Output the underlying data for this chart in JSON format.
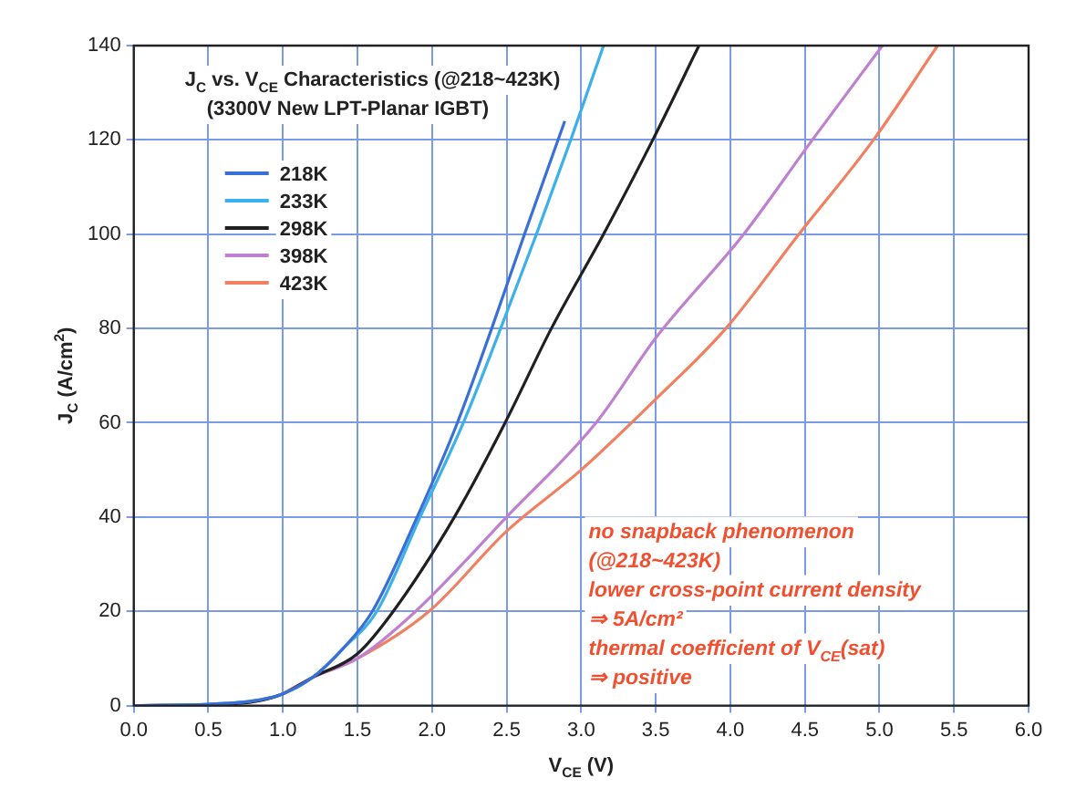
{
  "chart_data": {
    "type": "line",
    "title": "J$_{C}$ vs. V$_{CE}$ Characteristics (@218~423K)",
    "subtitle": "(3300V New LPT-Planar IGBT)",
    "xlabel": "V$_{CE}$ (V)",
    "ylabel": "J$_{C}$ (A/cm$^{2}$)",
    "xlim": [
      0,
      6
    ],
    "ylim": [
      0,
      140
    ],
    "xticks": [
      {
        "value": 0,
        "label": "0.0"
      },
      0.5,
      {
        "value": 1,
        "label": "1.0"
      },
      1.5,
      {
        "value": 2,
        "label": "2.0"
      },
      2.5,
      {
        "value": 3,
        "label": "3.0"
      },
      3.5,
      {
        "value": 4,
        "label": "4.0"
      },
      4.5,
      {
        "value": 5,
        "label": "5.0"
      },
      5.5,
      {
        "value": 6,
        "label": "6.0"
      }
    ],
    "yticks": [
      0,
      20,
      40,
      60,
      80,
      100,
      120,
      140
    ],
    "grid": true,
    "legend": "top left",
    "marker": "none",
    "line_style": "solid",
    "series": [
      {
        "name": "218K",
        "color": "#3a6fd8",
        "x": [
          0,
          0.5,
          0.8,
          1.0,
          1.2,
          1.4,
          1.6,
          1.9,
          2.17,
          2.4,
          2.62,
          2.89
        ],
        "values": [
          0,
          0.3,
          1,
          2.5,
          6,
          12,
          20,
          40,
          60,
          80,
          100,
          124
        ]
      },
      {
        "name": "233K",
        "color": "#3cb0e8",
        "x": [
          0,
          0.5,
          0.8,
          1.0,
          1.2,
          1.4,
          1.63,
          1.92,
          2.21,
          2.46,
          2.7,
          2.93,
          3.15
        ],
        "values": [
          0,
          0.3,
          1,
          2.5,
          6,
          12,
          20,
          40,
          60,
          80,
          100,
          120,
          140
        ]
      },
      {
        "name": "298K",
        "color": "#202020",
        "x": [
          0,
          0.5,
          0.8,
          1.0,
          1.2,
          1.5,
          1.74,
          2.15,
          2.49,
          2.8,
          3.15,
          3.48,
          3.79
        ],
        "values": [
          0,
          0.2,
          0.8,
          2.5,
          6,
          11,
          20,
          40,
          60,
          80,
          100,
          120,
          140
        ]
      },
      {
        "name": "398K",
        "color": "#c080d0",
        "x": [
          0,
          0.5,
          0.8,
          1.0,
          1.2,
          1.5,
          1.89,
          2.5,
          3.1,
          3.5,
          4.09,
          4.55,
          5.02
        ],
        "values": [
          0,
          0.2,
          0.8,
          2.5,
          6,
          10,
          20,
          40,
          60,
          78,
          100,
          120,
          140
        ]
      },
      {
        "name": "423K",
        "color": "#f08060",
        "x": [
          1.0,
          1.2,
          1.5,
          1.98,
          2.5,
          3.0,
          3.5,
          3.97,
          4.46,
          4.96,
          5.39
        ],
        "values": [
          2.5,
          6,
          10,
          20,
          37,
          50,
          65,
          80,
          100,
          120,
          140
        ]
      }
    ],
    "annotations": [
      "no snapback phenomenon",
      "(@218~423K)",
      "lower cross-point current density",
      "⇒ 5A/cm²",
      "thermal coefficient of V$_{CE}$(sat)",
      "⇒ positive"
    ]
  }
}
